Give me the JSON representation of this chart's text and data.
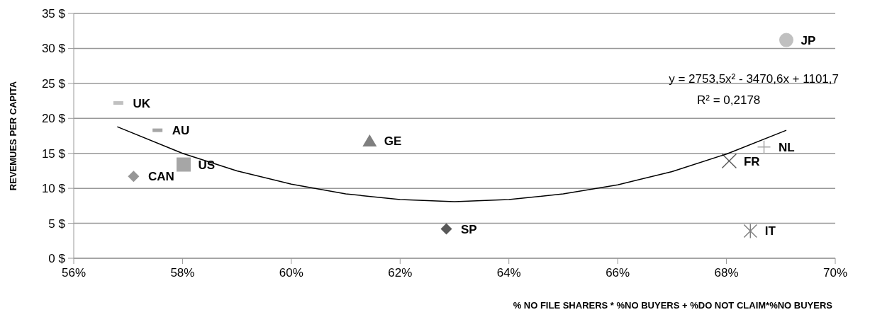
{
  "chart_data": {
    "type": "scatter",
    "xlabel": "% NO FILE SHARERS * %NO BUYERS + %DO NOT CLAIM*%NO BUYERS",
    "ylabel": "REVEMUES PER CAPITA",
    "xlim": [
      0.56,
      0.7
    ],
    "xticks": [
      {
        "value": 0.56,
        "label": "56%"
      },
      {
        "value": 0.58,
        "label": "58%"
      },
      {
        "value": 0.6,
        "label": "60%"
      },
      {
        "value": 0.62,
        "label": "62%"
      },
      {
        "value": 0.64,
        "label": "64%"
      },
      {
        "value": 0.66,
        "label": "66%"
      },
      {
        "value": 0.68,
        "label": "68%"
      },
      {
        "value": 0.7,
        "label": "70%"
      }
    ],
    "ylim": [
      0,
      35
    ],
    "yticks": [
      {
        "value": 0,
        "label": "0 $"
      },
      {
        "value": 5,
        "label": "5 $"
      },
      {
        "value": 10,
        "label": "10 $"
      },
      {
        "value": 15,
        "label": "15 $"
      },
      {
        "value": 20,
        "label": "20 $"
      },
      {
        "value": 25,
        "label": "25 $"
      },
      {
        "value": 30,
        "label": "30 $"
      },
      {
        "value": 35,
        "label": "35 $"
      }
    ],
    "grid": "y",
    "annotations": [
      "y = 2753,5x² - 3470,6x + 1101,7",
      "R² = 0,2178"
    ],
    "series": [
      {
        "name": "UK",
        "color": "#c0c0c0",
        "marker": "square",
        "x": [
          0.5682
        ],
        "values": [
          22.2
        ]
      },
      {
        "name": "AU",
        "color": "#a6a6a6",
        "marker": "square",
        "x": [
          0.5754
        ],
        "values": [
          18.3
        ]
      },
      {
        "name": "US",
        "color": "#a6a6a6",
        "marker": "square",
        "x": [
          0.5802
        ],
        "values": [
          13.4
        ]
      },
      {
        "name": "CAN",
        "color": "#969696",
        "marker": "diamond",
        "x": [
          0.571
        ],
        "values": [
          11.7
        ]
      },
      {
        "name": "GE",
        "color": "#7f7f7f",
        "marker": "triangle",
        "x": [
          0.6144
        ],
        "values": [
          16.8
        ]
      },
      {
        "name": "SP",
        "color": "#595959",
        "marker": "diamond",
        "x": [
          0.6285
        ],
        "values": [
          4.2
        ]
      },
      {
        "name": "JP",
        "color": "#c0c0c0",
        "marker": "circle",
        "x": [
          0.691
        ],
        "values": [
          31.2
        ]
      },
      {
        "name": "NL",
        "color": "#a6a6a6",
        "marker": "plus",
        "x": [
          0.6869
        ],
        "values": [
          15.9
        ]
      },
      {
        "name": "FR",
        "color": "#595959",
        "marker": "cross",
        "x": [
          0.6805
        ],
        "values": [
          13.9
        ]
      },
      {
        "name": "IT",
        "color": "#808080",
        "marker": "cross",
        "x": [
          0.6844
        ],
        "values": [
          3.9
        ]
      },
      {
        "type": "line",
        "color": "#000000",
        "marker": "none",
        "x": [
          0.568,
          0.58,
          0.59,
          0.6,
          0.61,
          0.62,
          0.63,
          0.64,
          0.65,
          0.66,
          0.67,
          0.68,
          0.691
        ],
        "values": [
          18.8,
          15.0,
          12.5,
          10.6,
          9.2,
          8.4,
          8.1,
          8.4,
          9.2,
          10.5,
          12.4,
          14.9,
          18.3
        ]
      }
    ]
  }
}
